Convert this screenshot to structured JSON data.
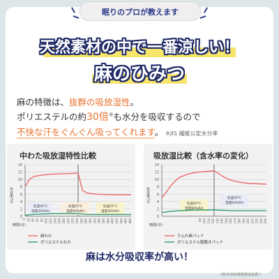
{
  "badge": {
    "text": "眠りのプロが教えます"
  },
  "headline": {
    "line1": "天然素材の中で一番涼しい！",
    "line2": "麻のひみつ"
  },
  "body": {
    "line1_a": "麻の特徴は、",
    "line1_b": "抜群の吸放湿性",
    "line1_c": "。",
    "line2_a": "ポリエステルの約",
    "line2_num": "30倍",
    "line2_mark": "※",
    "line2_b": "も水分を吸収するので",
    "line3_a": "不快な汗をぐんぐん吸ってくれます",
    "line3_b": "。",
    "line3_note": "※JIS 繊維公定水分率"
  },
  "chart_left_title": "中わた吸放湿特性比較",
  "chart_right_title": "吸放湿比較（含水率の変化）",
  "conclusion": "麻は水分吸収率が高い！",
  "footnote": "(財)日本紡績検査協会調べ",
  "colors": {
    "navy": "#1f2a66",
    "orange": "#e8722b",
    "red_line": "#e86a6a",
    "green_line": "#2f9e74"
  },
  "chart_data": [
    {
      "type": "line",
      "title": "中わた吸放湿特性比較",
      "ylabel": "水分率(%)",
      "xlabel": "時間(分)",
      "ylim": [
        0,
        14
      ],
      "yticks": [
        0,
        2,
        4,
        6,
        8,
        10,
        12,
        14
      ],
      "xlim": [
        0,
        480
      ],
      "xticks": [
        0,
        20,
        40,
        60,
        80,
        100,
        120,
        140,
        160,
        180,
        200,
        220,
        240,
        260,
        280,
        300,
        320,
        340,
        360,
        380,
        400,
        420,
        440,
        460,
        480
      ],
      "xtick_labels": [
        "0",
        "20",
        "40",
        "60",
        "80",
        "100",
        "120",
        "140",
        "160",
        "180",
        "200",
        "220",
        "240",
        "260",
        "280",
        "300",
        "320",
        "340",
        "360",
        "380",
        "400",
        "420",
        "440",
        "460",
        "480"
      ],
      "divider_x": 240,
      "series": [
        {
          "name": "麻わた",
          "color": "#e86a6a",
          "x": [
            0,
            20,
            40,
            80,
            120,
            160,
            200,
            240,
            260,
            280,
            320,
            360,
            400,
            440,
            480
          ],
          "y": [
            8.0,
            10.0,
            10.8,
            11.2,
            11.4,
            11.5,
            11.6,
            11.7,
            7.0,
            6.3,
            6.0,
            5.9,
            5.8,
            5.8,
            5.8
          ]
        },
        {
          "name": "ポリエステルわた",
          "color": "#2f9e74",
          "x": [
            0,
            40,
            80,
            120,
            160,
            200,
            240,
            280,
            320,
            360,
            400,
            440,
            480
          ],
          "y": [
            0.3,
            0.5,
            0.6,
            0.7,
            0.7,
            0.7,
            0.7,
            0.5,
            0.5,
            0.5,
            0.5,
            0.5,
            0.5
          ]
        }
      ],
      "annotations": [
        {
          "line1": "気温35°C",
          "line2": "湿度30%RH"
        },
        {
          "line1": "気温25°C",
          "line2": "湿度90%RH"
        },
        {
          "line1": "気温25°C",
          "line2": "湿度30%RH"
        }
      ]
    },
    {
      "type": "line",
      "title": "吸放湿比較（含水率の変化）",
      "ylabel": "含水率(%)",
      "xlabel": "時間(分)",
      "ylim": [
        0,
        14
      ],
      "yticks": [
        0,
        2,
        4,
        6,
        8,
        10,
        12,
        14
      ],
      "xlim": [
        0,
        240
      ],
      "xticks": [
        0,
        10,
        20,
        30,
        40,
        50,
        60,
        70,
        80,
        90,
        100,
        110,
        120,
        130,
        140,
        150,
        160,
        170,
        180,
        190,
        200,
        210,
        220,
        230,
        240
      ],
      "xtick_labels": [
        "",
        "",
        "",
        "",
        "",
        "",
        "",
        "",
        "",
        "90",
        "100",
        "110",
        "120",
        "130",
        "140",
        "150",
        "160",
        "170",
        "180",
        "190",
        "200",
        "210",
        "220",
        "230",
        "240"
      ],
      "divider_x": 120,
      "series": [
        {
          "name": "りんわ麻パッド",
          "color": "#e86a6a",
          "x": [
            0,
            10,
            20,
            30,
            40,
            50,
            60,
            70,
            80,
            90,
            100,
            110,
            120,
            130,
            140,
            150,
            160,
            180,
            200,
            220,
            240
          ],
          "y": [
            5.0,
            6.5,
            8.2,
            9.5,
            10.5,
            11.0,
            11.4,
            11.7,
            11.9,
            12.0,
            12.1,
            12.2,
            12.3,
            11.6,
            10.8,
            10.2,
            9.7,
            9.2,
            8.9,
            8.8,
            8.7
          ]
        },
        {
          "name": "ポリエステル製敷きパッド",
          "color": "#2f9e74",
          "x": [
            0,
            20,
            40,
            60,
            80,
            100,
            120,
            140,
            160,
            180,
            200,
            220,
            240
          ],
          "y": [
            1.0,
            1.3,
            1.5,
            1.6,
            1.7,
            1.7,
            1.7,
            1.6,
            1.5,
            1.5,
            1.5,
            1.5,
            1.5
          ]
        }
      ],
      "annotations": [
        {
          "line1": "気温40°C",
          "line2": "湿度80%RH"
        },
        {
          "line1": "気温30°C",
          "line2": "湿度60%RH"
        }
      ]
    }
  ]
}
